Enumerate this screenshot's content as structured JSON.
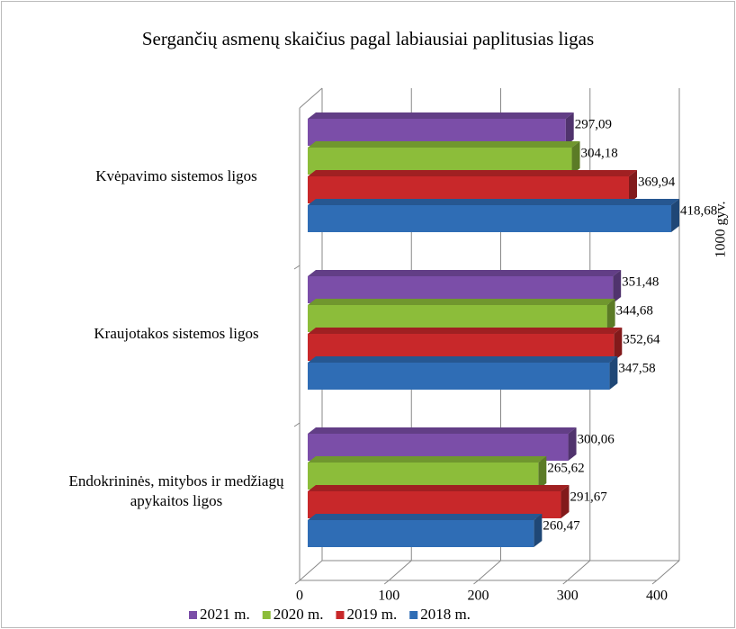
{
  "chart_data": {
    "type": "bar3d_horizontal",
    "title": "Sergančių asmenų skaičius pagal labiausiai paplitusias ligas",
    "y2_label": "1000 gyv.",
    "categories": [
      "Kvėpavimo sistemos ligos",
      "Kraujotakos sistemos ligos",
      "Endokrininės, mitybos ir medžiagų apykaitos ligos"
    ],
    "series": [
      {
        "name": "2021 m.",
        "color": "#7b4ea8",
        "values": [
          297.09,
          351.48,
          300.06
        ],
        "value_labels": [
          "297,09",
          "351,48",
          "300,06"
        ]
      },
      {
        "name": "2020 m.",
        "color": "#8cbd3a",
        "values": [
          304.18,
          344.68,
          265.62
        ],
        "value_labels": [
          "304,18",
          "344,68",
          "265,62"
        ]
      },
      {
        "name": "2019 m.",
        "color": "#c8282a",
        "values": [
          369.94,
          352.64,
          291.67
        ],
        "value_labels": [
          "369,94",
          "352,64",
          "291,67"
        ]
      },
      {
        "name": "2018 m.",
        "color": "#2f6db5",
        "values": [
          418.68,
          347.58,
          260.47
        ],
        "value_labels": [
          "418,68",
          "347,58",
          "260,47"
        ]
      }
    ],
    "xlim": [
      0,
      400
    ],
    "xticks": [
      0,
      100,
      200,
      300,
      400
    ],
    "grid": true,
    "legend": "bottom"
  }
}
